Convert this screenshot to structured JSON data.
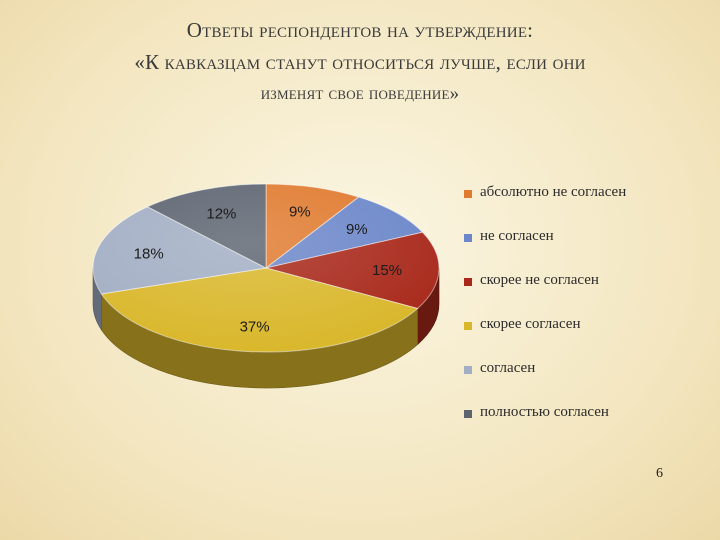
{
  "title": {
    "line1": "Ответы респондентов на утверждение:",
    "line2": "«К кавказцам станут относиться лучше, если они",
    "line3": "изменят свое поведение»"
  },
  "page_number": "6",
  "chart_data": {
    "type": "pie",
    "three_d": true,
    "legend_position": "right",
    "title": "",
    "slices": [
      {
        "label": "абсолютно не согласен",
        "value": 9,
        "display": "9%",
        "color": "#e07a2e"
      },
      {
        "label": "не согласен",
        "value": 9,
        "display": "9%",
        "color": "#6b86c9"
      },
      {
        "label": "скорее не согласен",
        "value": 15,
        "display": "15%",
        "color": "#a8281a"
      },
      {
        "label": "скорее согласен",
        "value": 37,
        "display": "37%",
        "color": "#d9b72a"
      },
      {
        "label": "согласен",
        "value": 18,
        "display": "18%",
        "color": "#a2aec4"
      },
      {
        "label": "полностью согласен",
        "value": 12,
        "display": "12%",
        "color": "#5c6470"
      }
    ]
  }
}
